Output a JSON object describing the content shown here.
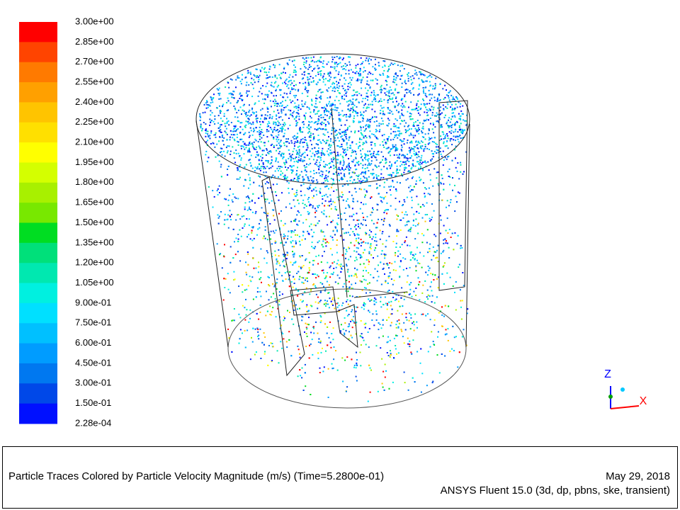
{
  "colorbar": {
    "labels": [
      "3.00e+00",
      "2.85e+00",
      "2.70e+00",
      "2.55e+00",
      "2.40e+00",
      "2.25e+00",
      "2.10e+00",
      "1.95e+00",
      "1.80e+00",
      "1.65e+00",
      "1.50e+00",
      "1.35e+00",
      "1.20e+00",
      "1.05e+00",
      "9.00e-01",
      "7.50e-01",
      "6.00e-01",
      "4.50e-01",
      "3.00e-01",
      "1.50e-01",
      "2.28e-04"
    ],
    "colors": [
      "#ff0000",
      "#ff4400",
      "#ff7a00",
      "#ffa000",
      "#ffc400",
      "#ffe000",
      "#ffff00",
      "#d4ff00",
      "#a8f000",
      "#78e800",
      "#00dd22",
      "#00e07a",
      "#00e8b0",
      "#00f0e0",
      "#00e0ff",
      "#00c0ff",
      "#009cff",
      "#0078f0",
      "#0048e8",
      "#0010ff"
    ]
  },
  "axes_triad": {
    "z_label": "Z",
    "x_label": "X"
  },
  "footer": {
    "description": "Particle Traces Colored by Particle Velocity Magnitude (m/s)  (Time=5.2800e-01)",
    "date": "May 29, 2018",
    "software": "ANSYS Fluent 15.0 (3d, dp, pbns, ske, transient)"
  }
}
